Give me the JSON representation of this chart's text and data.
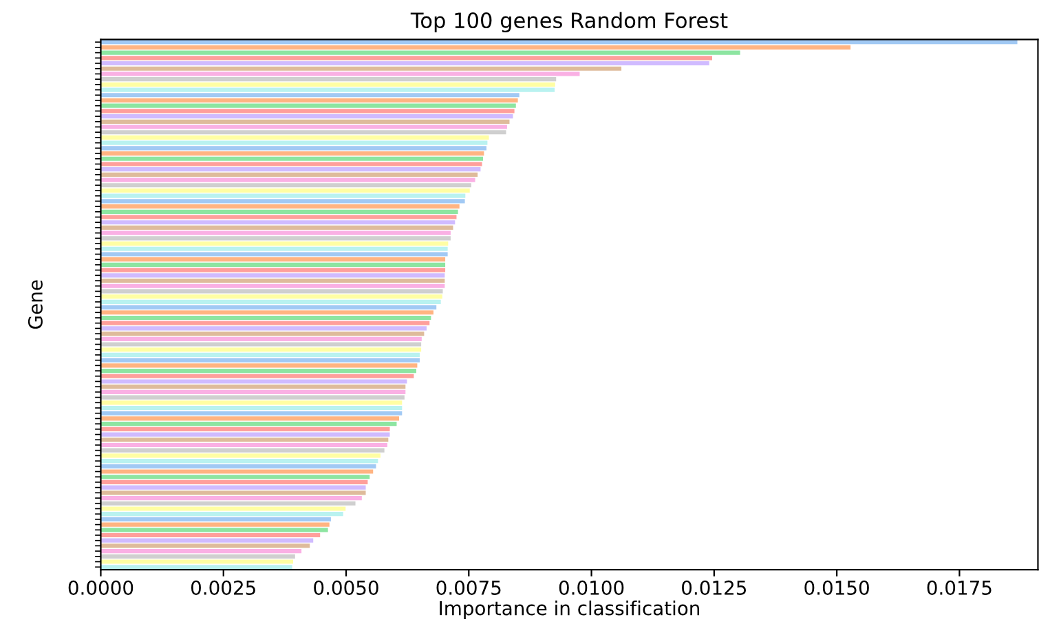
{
  "chart_data": {
    "type": "bar",
    "orientation": "horizontal",
    "title": "Top 100 genes Random Forest",
    "xlabel": "Importance in classification",
    "ylabel": "Gene",
    "categories": [
      null,
      null,
      null,
      null,
      null,
      null,
      null,
      null,
      null,
      null,
      null,
      null,
      null,
      null,
      null,
      null,
      null,
      null,
      null,
      null,
      null,
      null,
      null,
      null,
      null,
      null,
      null,
      null,
      null,
      null,
      null,
      null,
      null,
      null,
      null,
      null,
      null,
      null,
      null,
      null,
      null,
      null,
      null,
      null,
      null,
      null,
      null,
      null,
      null,
      null,
      null,
      null,
      null,
      null,
      null,
      null,
      null,
      null,
      null,
      null,
      null,
      null,
      null,
      null,
      null,
      null,
      null,
      null,
      null,
      null,
      null,
      null,
      null,
      null,
      null,
      null,
      null,
      null,
      null,
      null,
      null,
      null,
      null,
      null,
      null,
      null,
      null,
      null,
      null,
      null,
      null,
      null,
      null,
      null,
      null,
      null,
      null,
      null,
      null,
      null
    ],
    "values": [
      0.01868,
      0.01528,
      0.01303,
      0.01246,
      0.0124,
      0.01061,
      0.00976,
      0.00928,
      0.00926,
      0.00925,
      0.00853,
      0.0085,
      0.00846,
      0.00843,
      0.0084,
      0.00833,
      0.00828,
      0.00826,
      0.00791,
      0.00788,
      0.00786,
      0.00781,
      0.00779,
      0.00777,
      0.00774,
      0.00768,
      0.00763,
      0.00755,
      0.00752,
      0.00743,
      0.00742,
      0.00731,
      0.00728,
      0.00725,
      0.00722,
      0.00718,
      0.00713,
      0.00713,
      0.00708,
      0.00707,
      0.00707,
      0.00702,
      0.00702,
      0.00702,
      0.00701,
      0.00701,
      0.00701,
      0.00697,
      0.00696,
      0.00693,
      0.00684,
      0.00678,
      0.00673,
      0.0067,
      0.00664,
      0.00659,
      0.00654,
      0.00653,
      0.00653,
      0.0065,
      0.0065,
      0.00645,
      0.00643,
      0.00638,
      0.00624,
      0.00621,
      0.00621,
      0.00619,
      0.00614,
      0.00614,
      0.00614,
      0.00608,
      0.00603,
      0.00589,
      0.00589,
      0.00586,
      0.00584,
      0.00578,
      0.0057,
      0.00565,
      0.00561,
      0.00555,
      0.00548,
      0.00544,
      0.0054,
      0.0054,
      0.00532,
      0.00519,
      0.00499,
      0.00494,
      0.00469,
      0.00466,
      0.00463,
      0.00447,
      0.00433,
      0.00426,
      0.00409,
      0.00396,
      0.00392,
      0.0039
    ],
    "colors": [
      "#a1c9f4",
      "#ffb482",
      "#8de5a1",
      "#ff9f9b",
      "#d0bbff",
      "#debb9b",
      "#fab0e4",
      "#cfcfcf",
      "#fffea3",
      "#b9f2f0",
      "#a1c9f4",
      "#ffb482",
      "#8de5a1",
      "#ff9f9b",
      "#d0bbff",
      "#debb9b",
      "#fab0e4",
      "#cfcfcf",
      "#fffea3",
      "#b9f2f0",
      "#a1c9f4",
      "#ffb482",
      "#8de5a1",
      "#ff9f9b",
      "#d0bbff",
      "#debb9b",
      "#fab0e4",
      "#cfcfcf",
      "#fffea3",
      "#b9f2f0",
      "#a1c9f4",
      "#ffb482",
      "#8de5a1",
      "#ff9f9b",
      "#d0bbff",
      "#debb9b",
      "#fab0e4",
      "#cfcfcf",
      "#fffea3",
      "#b9f2f0",
      "#a1c9f4",
      "#ffb482",
      "#8de5a1",
      "#ff9f9b",
      "#d0bbff",
      "#debb9b",
      "#fab0e4",
      "#cfcfcf",
      "#fffea3",
      "#b9f2f0",
      "#a1c9f4",
      "#ffb482",
      "#8de5a1",
      "#ff9f9b",
      "#d0bbff",
      "#debb9b",
      "#fab0e4",
      "#cfcfcf",
      "#fffea3",
      "#b9f2f0",
      "#a1c9f4",
      "#ffb482",
      "#8de5a1",
      "#ff9f9b",
      "#d0bbff",
      "#debb9b",
      "#fab0e4",
      "#cfcfcf",
      "#fffea3",
      "#b9f2f0",
      "#a1c9f4",
      "#ffb482",
      "#8de5a1",
      "#ff9f9b",
      "#d0bbff",
      "#debb9b",
      "#fab0e4",
      "#cfcfcf",
      "#fffea3",
      "#b9f2f0",
      "#a1c9f4",
      "#ffb482",
      "#8de5a1",
      "#ff9f9b",
      "#d0bbff",
      "#debb9b",
      "#fab0e4",
      "#cfcfcf",
      "#fffea3",
      "#b9f2f0",
      "#a1c9f4",
      "#ffb482",
      "#8de5a1",
      "#ff9f9b",
      "#d0bbff",
      "#debb9b",
      "#fab0e4",
      "#cfcfcf",
      "#fffea3",
      "#b9f2f0"
    ],
    "xlim": [
      0,
      0.0191
    ],
    "xticks": [
      {
        "value": 0,
        "label": "0.0000"
      },
      {
        "value": 0.0025,
        "label": "0.0025"
      },
      {
        "value": 0.005,
        "label": "0.0050"
      },
      {
        "value": 0.0075,
        "label": "0.0075"
      },
      {
        "value": 0.01,
        "label": "0.0100"
      },
      {
        "value": 0.0125,
        "label": "0.0125"
      },
      {
        "value": 0.015,
        "label": "0.0150"
      },
      {
        "value": 0.0175,
        "label": "0.0175"
      }
    ],
    "grid": false
  }
}
